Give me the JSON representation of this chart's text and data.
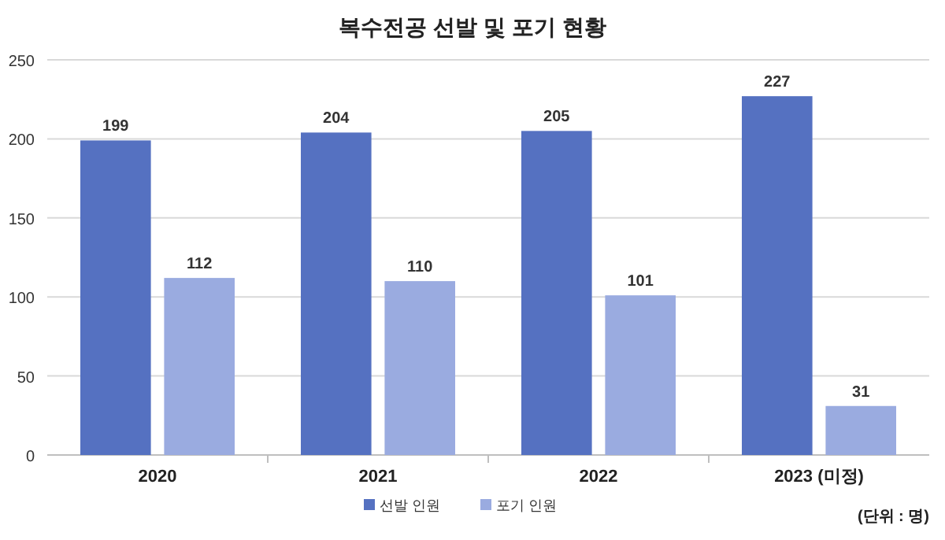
{
  "chart_data": {
    "type": "bar",
    "title": "복수전공 선발 및 포기 현황",
    "categories": [
      "2020",
      "2021",
      "2022",
      "2023 (미정)"
    ],
    "series": [
      {
        "name": "선발 인원",
        "color": "#5571c1",
        "values": [
          199,
          204,
          205,
          227
        ]
      },
      {
        "name": "포기 인원",
        "color": "#9aabe0",
        "values": [
          112,
          110,
          101,
          31
        ]
      }
    ],
    "ylim": [
      0,
      250
    ],
    "yticks": [
      0,
      50,
      100,
      150,
      200,
      250
    ],
    "grid": "y",
    "legend": "bottom",
    "data_labels": true,
    "annotations": [
      "(단위 : 명)"
    ]
  }
}
